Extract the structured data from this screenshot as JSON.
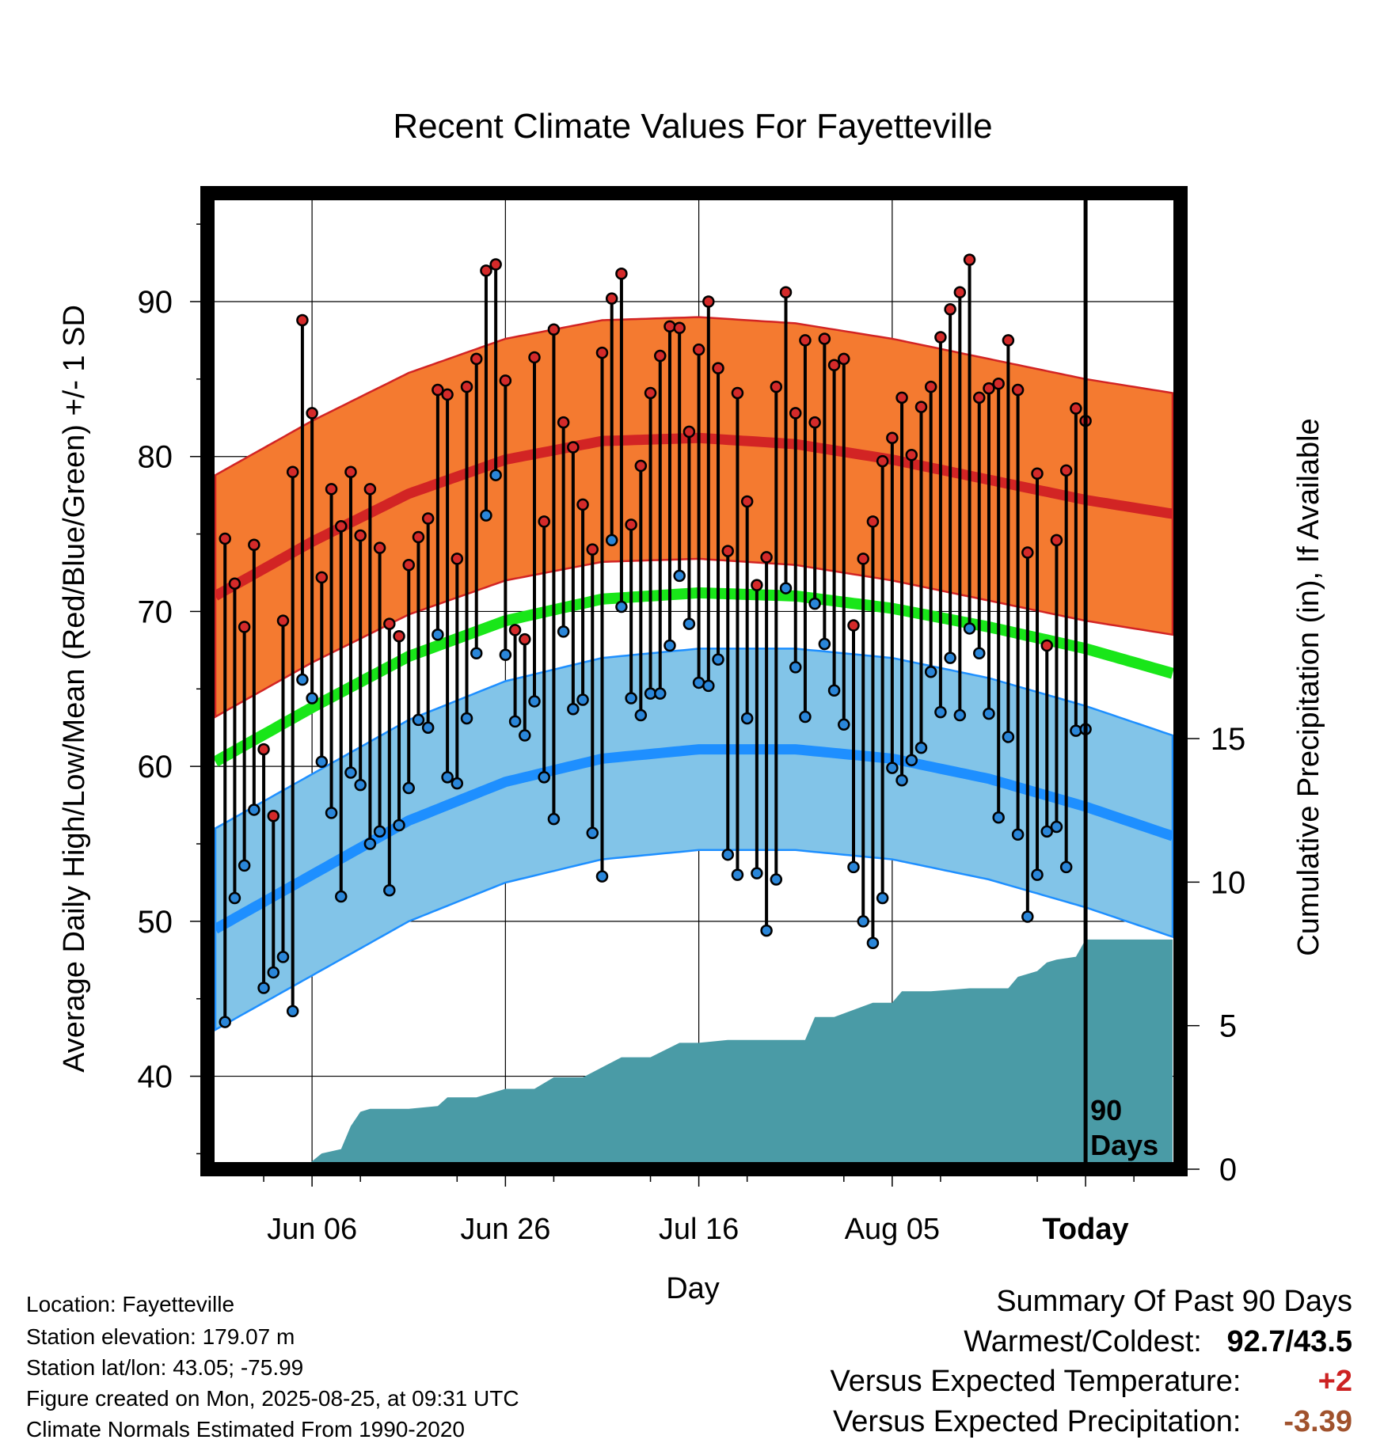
{
  "chart_data": {
    "type": "line",
    "title": "Recent Climate Values For Fayetteville",
    "xlabel": "Day",
    "ylabel": "Average Daily High/Low/Mean (Red/Blue/Green) +/- 1 SD",
    "y2label": "Cumulative Precipitation (in), If Available",
    "xrange_days": [
      -90,
      9
    ],
    "x_ticks": [
      {
        "label": "Jun 06",
        "day": -80
      },
      {
        "label": "Jun 26",
        "day": -60
      },
      {
        "label": "Jul 16",
        "day": -40
      },
      {
        "label": "Aug 05",
        "day": -20
      },
      {
        "label": "Today",
        "day": 0
      }
    ],
    "ylim": [
      34,
      97
    ],
    "y_ticks": [
      40,
      50,
      60,
      70,
      80,
      90
    ],
    "y2lim": [
      0,
      34
    ],
    "y2_ticks": [
      0,
      5,
      10,
      15
    ],
    "grid": true,
    "today_marker": {
      "day": 0,
      "label_line1": "90",
      "label_line2": "Days"
    },
    "normals": {
      "high_mean": {
        "day": [
          -90,
          -80,
          -70,
          -60,
          -50,
          -40,
          -30,
          -20,
          -10,
          0,
          9
        ],
        "values": [
          71.0,
          74.5,
          77.6,
          79.8,
          81.0,
          81.2,
          80.8,
          79.8,
          78.5,
          77.2,
          76.3
        ]
      },
      "high_sd": 7.8,
      "low_mean": {
        "day": [
          -90,
          -80,
          -70,
          -60,
          -50,
          -40,
          -30,
          -20,
          -10,
          0,
          9
        ],
        "values": [
          49.5,
          53.0,
          56.5,
          59.0,
          60.5,
          61.1,
          61.1,
          60.5,
          59.2,
          57.4,
          55.5
        ]
      },
      "low_sd": 6.5,
      "mean": {
        "day": [
          -90,
          -80,
          -70,
          -60,
          -50,
          -40,
          -30,
          -20,
          -10,
          0,
          9
        ],
        "values": [
          60.3,
          63.8,
          67.1,
          69.4,
          70.8,
          71.2,
          71.0,
          70.2,
          69.0,
          67.6,
          66.0
        ]
      }
    },
    "daily_high": [
      74.7,
      71.8,
      69.0,
      74.3,
      61.1,
      56.8,
      69.4,
      79.0,
      88.8,
      82.8,
      72.2,
      77.9,
      75.5,
      79.0,
      74.9,
      77.9,
      74.1,
      69.2,
      68.4,
      73.0,
      74.8,
      76.0,
      84.3,
      84.0,
      73.4,
      84.5,
      86.3,
      92.0,
      92.4,
      84.9,
      68.8,
      68.2,
      86.4,
      75.8,
      88.2,
      82.2,
      80.6,
      76.9,
      74.0,
      86.7,
      90.2,
      91.8,
      75.6,
      79.4,
      84.1,
      86.5,
      88.4,
      88.3,
      81.6,
      86.9,
      90.0,
      85.7,
      73.9,
      84.1,
      77.1,
      71.7,
      73.5,
      84.5,
      90.6,
      82.8,
      87.5,
      82.2,
      87.6,
      85.9,
      86.3,
      69.1,
      73.4,
      75.8,
      79.7,
      81.2,
      83.8,
      80.1,
      83.2,
      84.5,
      87.7,
      89.5,
      90.6,
      92.7,
      83.8,
      84.4,
      84.7,
      87.5,
      84.3,
      73.8,
      78.9,
      67.8,
      74.6,
      79.1,
      83.1,
      82.3
    ],
    "daily_low": [
      43.5,
      51.5,
      53.6,
      57.2,
      45.7,
      46.7,
      47.7,
      44.2,
      65.6,
      64.4,
      60.3,
      57.0,
      51.6,
      59.6,
      58.8,
      55.0,
      55.8,
      52.0,
      56.2,
      58.6,
      63.0,
      62.5,
      68.5,
      59.3,
      58.9,
      63.1,
      67.3,
      76.2,
      78.8,
      67.2,
      62.9,
      62.0,
      64.2,
      59.3,
      56.6,
      68.7,
      63.7,
      64.3,
      55.7,
      52.9,
      74.6,
      70.3,
      64.4,
      63.3,
      64.7,
      64.7,
      67.8,
      72.3,
      69.2,
      65.4,
      65.2,
      66.9,
      54.3,
      53.0,
      63.1,
      53.1,
      49.4,
      52.7,
      71.5,
      66.4,
      63.2,
      70.5,
      67.9,
      64.9,
      62.7,
      53.5,
      50.0,
      48.6,
      51.5,
      59.9,
      59.1,
      60.4,
      61.2,
      66.1,
      63.5,
      67.0,
      63.3,
      68.9,
      67.3,
      63.4,
      56.7,
      61.9,
      55.6,
      50.3,
      53.0,
      55.8,
      56.1,
      53.5,
      62.3,
      62.4
    ],
    "cumulative_precip": {
      "day": [
        -81,
        -79,
        -77,
        -76,
        -75,
        -74,
        -70,
        -67,
        -66,
        -63,
        -60,
        -57,
        -55,
        -52,
        -48,
        -45,
        -42,
        -40,
        -37,
        -34,
        -33,
        -29,
        -28,
        -26,
        -22,
        -20,
        -19,
        -16,
        -12,
        -11,
        -8,
        -7,
        -5,
        -4,
        -3,
        -1,
        0,
        9
      ],
      "values": [
        0.0,
        0.55,
        0.7,
        1.5,
        2.0,
        2.1,
        2.1,
        2.2,
        2.5,
        2.5,
        2.8,
        2.8,
        3.2,
        3.2,
        3.9,
        3.9,
        4.4,
        4.4,
        4.5,
        4.5,
        4.5,
        4.5,
        5.3,
        5.3,
        5.8,
        5.8,
        6.2,
        6.2,
        6.3,
        6.3,
        6.3,
        6.7,
        6.9,
        7.2,
        7.3,
        7.4,
        8.0,
        8.0
      ]
    }
  },
  "footer": {
    "location": "Location: Fayetteville",
    "elevation": "Station elevation: 179.07 m",
    "latlon": "Station lat/lon: 43.05; -75.99",
    "created": "Figure created on Mon, 2025-08-25, at 09:31 UTC",
    "normals_source": "Climate Normals Estimated From 1990-2020"
  },
  "summary": {
    "title": "Summary Of Past 90 Days",
    "warm_cold_label": "Warmest/Coldest:",
    "warm_cold_value": "92.7/43.5",
    "temp_label": "Versus Expected Temperature:",
    "temp_value": "+2",
    "temp_color": "#cc2222",
    "precip_label": "Versus Expected Precipitation:",
    "precip_value": "-3.39",
    "precip_color": "#a0522d"
  },
  "colors": {
    "high_band": "#f47a30",
    "high_line": "#d22424",
    "high_edge": "#d22424",
    "mean_line": "#19e619",
    "low_band": "#82c4e8",
    "low_line": "#1e8fff",
    "low_edge": "#1e8fff",
    "precip_fill": "#4a9ba6",
    "high_dot": "#d42a2a",
    "low_dot": "#2a86d9"
  }
}
